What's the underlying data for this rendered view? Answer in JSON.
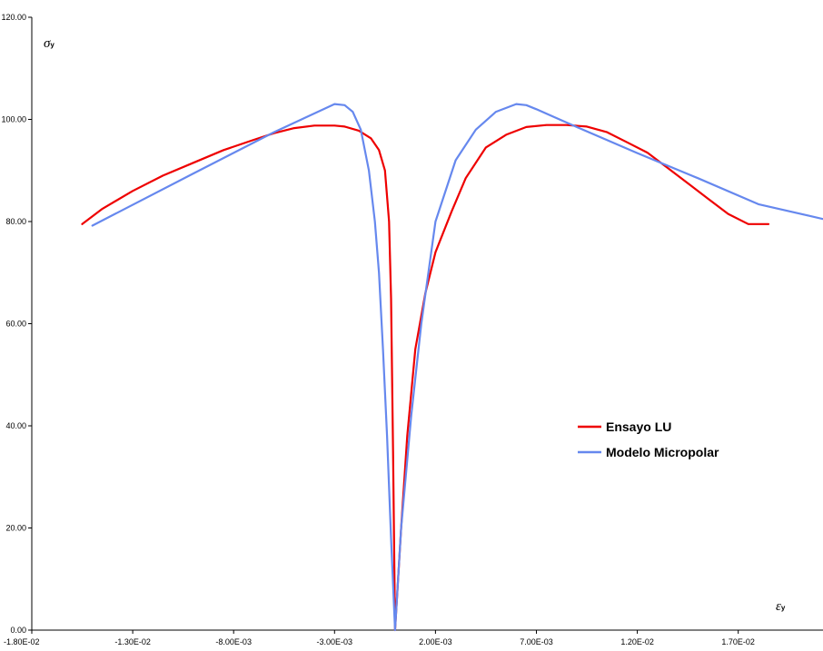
{
  "chart_data": {
    "type": "line",
    "title": "",
    "xlabel": {
      "symbol": "ε",
      "subscript": "y"
    },
    "ylabel": {
      "symbol": "σ",
      "subscript": "y"
    },
    "xlim": [
      -0.018,
      0.0212
    ],
    "ylim": [
      0,
      120
    ],
    "grid": false,
    "legend_position": "right",
    "x_ticks": [
      -0.018,
      -0.013,
      -0.008,
      -0.003,
      0.002,
      0.007,
      0.012,
      0.017
    ],
    "x_tick_labels": [
      "-1.80E-02",
      "-1.30E-02",
      "-8.00E-03",
      "-3.00E-03",
      "2.00E-03",
      "7.00E-03",
      "1.20E-02",
      "1.70E-02"
    ],
    "y_ticks": [
      0,
      20,
      40,
      60,
      80,
      100,
      120
    ],
    "y_tick_labels": [
      "0.00",
      "20.00",
      "40.00",
      "60.00",
      "80.00",
      "100.00",
      "120.00"
    ],
    "series": [
      {
        "name": "Ensayo LU",
        "color": "#ee0000",
        "x": [
          -0.0155,
          -0.0145,
          -0.013,
          -0.0115,
          -0.01,
          -0.0085,
          -0.007,
          -0.006,
          -0.005,
          -0.004,
          -0.003,
          -0.0025,
          -0.0018,
          -0.0012,
          -0.0008,
          -0.0005,
          -0.0003,
          -0.0002,
          -0.0001,
          0.0,
          0.0003,
          0.0006,
          0.001,
          0.0015,
          0.002,
          0.0028,
          0.0035,
          0.0045,
          0.0055,
          0.0065,
          0.0075,
          0.0085,
          0.0095,
          0.0105,
          0.0115,
          0.0125,
          0.0135,
          0.0145,
          0.0155,
          0.0165,
          0.0175,
          0.0185
        ],
        "y": [
          79.5,
          82.5,
          86.0,
          89.0,
          91.5,
          94.0,
          96.0,
          97.3,
          98.3,
          98.8,
          98.8,
          98.6,
          97.8,
          96.3,
          94.0,
          90.0,
          80.0,
          65.0,
          35.0,
          0.0,
          20.0,
          38.0,
          55.0,
          66.0,
          74.0,
          82.0,
          88.5,
          94.5,
          97.0,
          98.5,
          98.9,
          98.9,
          98.6,
          97.5,
          95.5,
          93.5,
          90.5,
          87.5,
          84.5,
          81.5,
          79.5,
          79.5
        ]
      },
      {
        "name": "Modelo Micropolar",
        "color": "#6688ee",
        "x": [
          -0.015,
          -0.01,
          -0.006,
          -0.003,
          -0.0025,
          -0.0021,
          -0.0017,
          -0.0013,
          -0.001,
          -0.0008,
          -0.0006,
          -0.0004,
          -0.0002,
          0.0,
          0.0003,
          0.0008,
          0.0013,
          0.002,
          0.003,
          0.004,
          0.005,
          0.006,
          0.0065,
          0.007,
          0.009,
          0.012,
          0.015,
          0.018,
          0.0212
        ],
        "y": [
          79.2,
          89.4,
          97.5,
          103.0,
          102.8,
          101.5,
          98.0,
          90.0,
          80.0,
          70.0,
          55.0,
          38.0,
          18.0,
          0.0,
          20.0,
          42.0,
          60.0,
          80.0,
          92.0,
          98.0,
          101.5,
          103.0,
          102.8,
          102.0,
          98.5,
          93.4,
          88.5,
          83.4,
          80.5
        ]
      }
    ]
  }
}
